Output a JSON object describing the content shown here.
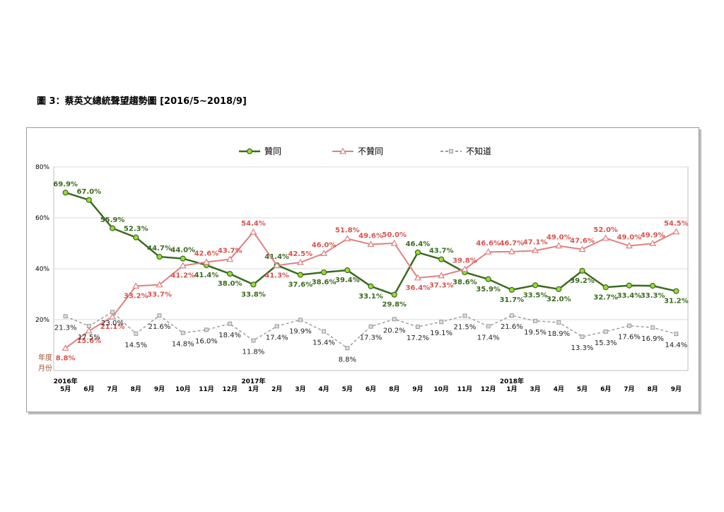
{
  "page": {
    "title": "圖 3：蔡英文總統聲望趨勢圖 [2016/5~2018/9]"
  },
  "chart_data": {
    "type": "line",
    "categories": [
      "5月",
      "6月",
      "7月",
      "8月",
      "9月",
      "10月",
      "11月",
      "12月",
      "1月",
      "2月",
      "3月",
      "4月",
      "5月",
      "6月",
      "8月",
      "9月",
      "10月",
      "11月",
      "12月",
      "1月",
      "3月",
      "4月",
      "5月",
      "6月",
      "7月",
      "8月",
      "9月"
    ],
    "year_markers": [
      {
        "index": 0,
        "label": "2016年"
      },
      {
        "index": 8,
        "label": "2017年"
      },
      {
        "index": 19,
        "label": "2018年"
      }
    ],
    "series": [
      {
        "name": "贊同",
        "color": "#3a6b1e",
        "marker": "circle",
        "values": [
          69.9,
          67.0,
          55.9,
          52.3,
          44.7,
          44.0,
          41.4,
          38.0,
          33.8,
          41.4,
          37.6,
          38.6,
          39.4,
          33.1,
          29.8,
          46.4,
          43.7,
          38.6,
          35.9,
          31.7,
          33.5,
          32.0,
          39.2,
          32.7,
          33.4,
          33.3,
          31.2
        ]
      },
      {
        "name": "不贊同",
        "color": "#e08080",
        "marker": "triangle",
        "values": [
          8.8,
          15.6,
          21.1,
          33.2,
          33.7,
          41.2,
          42.6,
          43.7,
          54.4,
          41.3,
          42.5,
          46.0,
          51.8,
          49.6,
          50.0,
          36.4,
          37.3,
          39.8,
          46.6,
          46.7,
          47.1,
          49.0,
          47.6,
          52.0,
          49.0,
          49.9,
          54.5
        ]
      },
      {
        "name": "不知道",
        "color": "#999999",
        "marker": "square",
        "dashed": true,
        "values": [
          21.3,
          17.5,
          23.0,
          14.5,
          21.6,
          14.8,
          16.0,
          18.4,
          11.8,
          17.4,
          19.9,
          15.4,
          8.8,
          17.3,
          20.2,
          17.2,
          19.1,
          21.5,
          17.4,
          21.6,
          19.5,
          18.9,
          13.3,
          15.3,
          17.6,
          16.9,
          14.4
        ]
      }
    ],
    "y_ticks": [
      "80%",
      "60%",
      "40%",
      "20%"
    ],
    "ylim": [
      0,
      80
    ],
    "axis_corner_labels": [
      "年度",
      "月份"
    ],
    "grid": true,
    "legend_position": "top"
  }
}
